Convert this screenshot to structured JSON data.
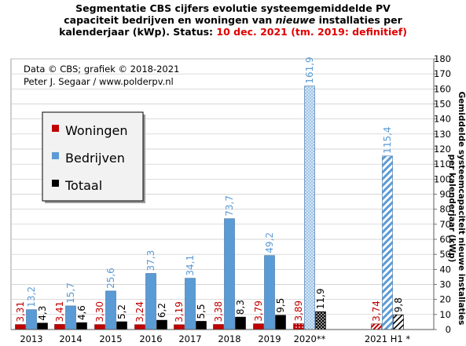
{
  "chart_data": {
    "type": "bar",
    "title_lines": [
      "Segmentatie CBS cijfers evolutie systeemgemiddelde PV",
      [
        "capaciteit bedrijven en woningen van ",
        "nieuwe",
        " installaties per"
      ],
      [
        "kalenderjaar (kWp). Status: ",
        "10 dec. 2021 (tm. 2019: definitief)"
      ]
    ],
    "credits": [
      "Data © CBS; grafiek © 2018-2021",
      "Peter J. Segaar / www.polderpv.nl"
    ],
    "ylabel": "Gemiddelde systeemcapaciteit nieuwe installaties per kalenderjaar (kWp)",
    "ylim": [
      0,
      180
    ],
    "ytick_step": 10,
    "grid": true,
    "legend_position": "middle-left",
    "categories": [
      "2013",
      "2014",
      "2015",
      "2016",
      "2017",
      "2018",
      "2019",
      "2020**",
      "2021 H1 *"
    ],
    "series": [
      {
        "name": "Woningen",
        "color": "#c00000",
        "values": [
          3.31,
          3.41,
          3.3,
          3.24,
          3.19,
          3.38,
          3.79,
          3.89,
          3.74
        ],
        "labels": [
          "3,31",
          "3,41",
          "3,30",
          "3,24",
          "3,19",
          "3,38",
          "3,79",
          "3,89",
          "3,74"
        ]
      },
      {
        "name": "Bedrijven",
        "color": "#5b9bd5",
        "values": [
          13.2,
          15.7,
          25.6,
          37.3,
          34.1,
          73.7,
          49.2,
          161.9,
          115.4
        ],
        "labels": [
          "13,2",
          "15,7",
          "25,6",
          "37,3",
          "34,1",
          "73,7",
          "49,2",
          "161,9",
          "115,4"
        ]
      },
      {
        "name": "Totaal",
        "color": "#000000",
        "values": [
          4.3,
          4.6,
          5.2,
          6.2,
          5.5,
          8.3,
          9.5,
          11.9,
          9.8
        ],
        "labels": [
          "4,3",
          "4,6",
          "5,2",
          "6,2",
          "5,5",
          "8,3",
          "9,5",
          "11,9",
          "9,8"
        ]
      }
    ],
    "provisional_style": {
      "2020**": "dotted",
      "2021 H1 *": "hatched"
    }
  }
}
